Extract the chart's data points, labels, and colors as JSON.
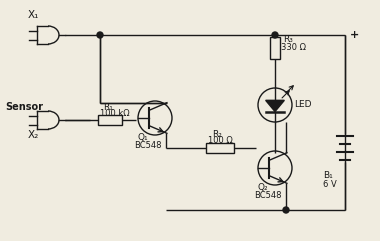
{
  "bg_color": "#f0ece0",
  "line_color": "#1a1a1a",
  "figsize": [
    3.8,
    2.41
  ],
  "dpi": 100,
  "labels": {
    "x1": "X₁",
    "x2": "X₂",
    "sensor": "Sensor",
    "r1": "R₁",
    "r1_val": "100 kΩ",
    "q1": "Q₁",
    "q1_val": "BC548",
    "r2": "R₂",
    "r2_val": "100 Ω",
    "r3": "R₃",
    "r3_val": "330 Ω",
    "led": "LED",
    "q2": "Q₂",
    "q2_val": "BC548",
    "b1": "B₁",
    "b1_val": "6 V",
    "plus": "+"
  }
}
